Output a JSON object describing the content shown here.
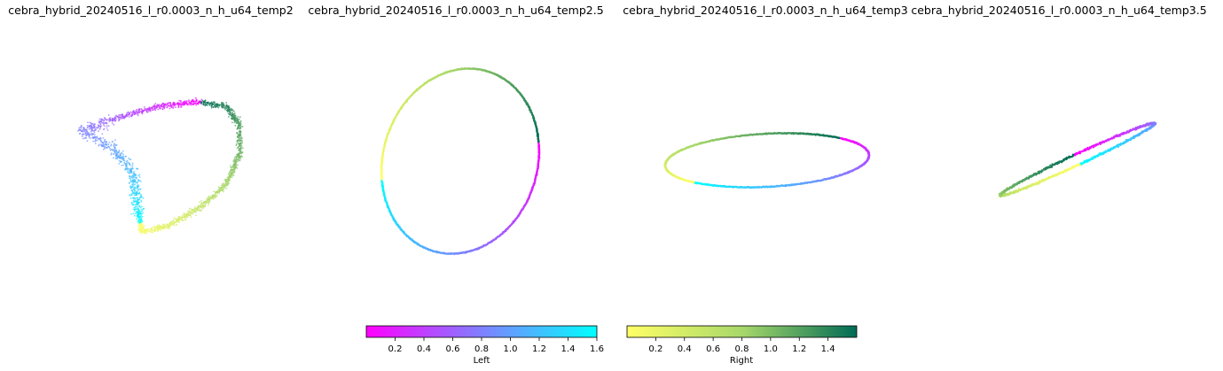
{
  "chart_data": [
    {
      "type": "scatter",
      "title": "cebra_hybrid_20240516_l_r0.0003_n_h_u64_temp2",
      "axes": "off"
    },
    {
      "type": "scatter",
      "title": "cebra_hybrid_20240516_l_r0.0003_n_h_u64_temp2.5",
      "axes": "off"
    },
    {
      "type": "scatter",
      "title": "cebra_hybrid_20240516_l_r0.0003_n_h_u64_temp3",
      "axes": "off"
    },
    {
      "type": "scatter",
      "title": "cebra_hybrid_20240516_l_r0.0003_n_h_u64_temp3.5",
      "axes": "off"
    }
  ],
  "colorbars": [
    {
      "label": "Left",
      "colors": [
        "#ff00ff",
        "#00ffff"
      ],
      "range": [
        0,
        1.6
      ],
      "ticks": [
        "0.2",
        "0.4",
        "0.6",
        "0.8",
        "1.0",
        "1.2",
        "1.4",
        "1.6"
      ],
      "tick_values": [
        0.2,
        0.4,
        0.6,
        0.8,
        1.0,
        1.2,
        1.4,
        1.6
      ]
    },
    {
      "label": "Right",
      "colors": [
        "#ffff66",
        "#a8d86a",
        "#006b55"
      ],
      "range": [
        0,
        1.6
      ],
      "ticks": [
        "0.2",
        "0.4",
        "0.6",
        "0.8",
        "1.0",
        "1.2",
        "1.4"
      ],
      "tick_values": [
        0.2,
        0.4,
        0.6,
        0.8,
        1.0,
        1.2,
        1.4
      ]
    }
  ]
}
